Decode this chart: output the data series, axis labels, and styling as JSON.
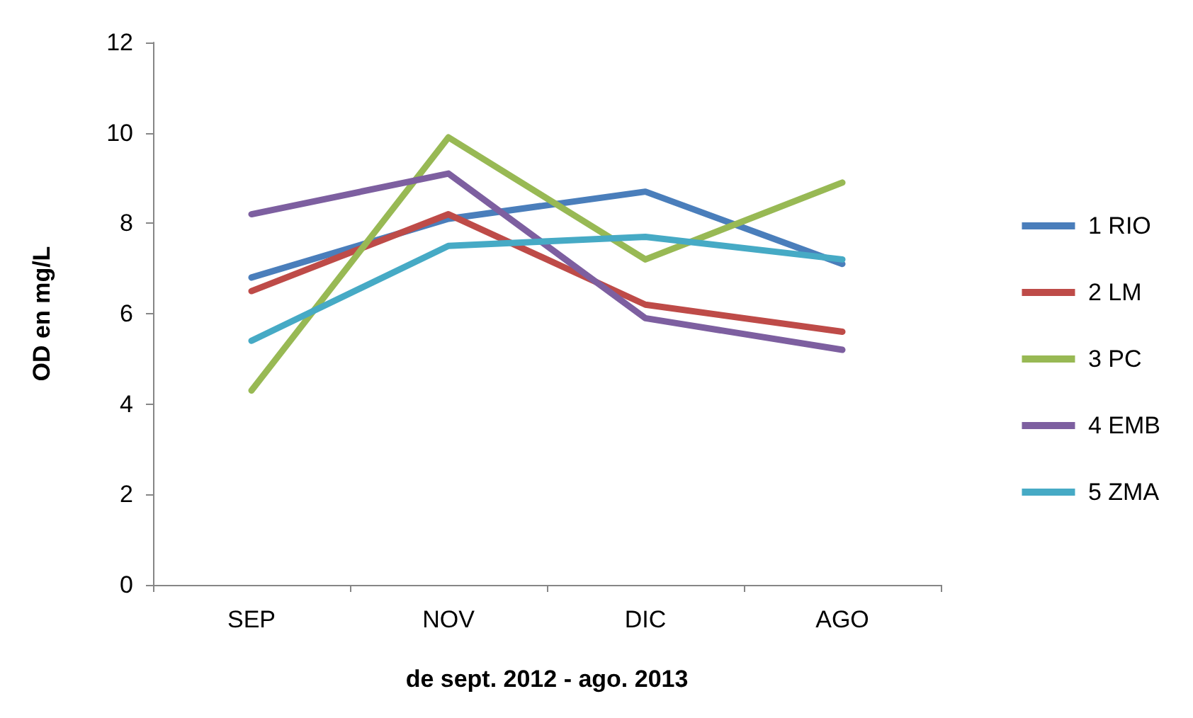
{
  "chart_data": {
    "type": "line",
    "xlabel": "de sept. 2012 - ago. 2013",
    "ylabel": "OD en mg/L",
    "categories": [
      "SEP",
      "NOV",
      "DIC",
      "AGO"
    ],
    "series": [
      {
        "name": "1 RIO",
        "color": "#4a7ebb",
        "values": [
          6.8,
          8.1,
          8.7,
          7.1
        ]
      },
      {
        "name": "2 LM",
        "color": "#be4b48",
        "values": [
          6.5,
          8.2,
          6.2,
          5.6
        ]
      },
      {
        "name": "3 PC",
        "color": "#98b954",
        "values": [
          4.3,
          9.9,
          7.2,
          8.9
        ]
      },
      {
        "name": "4 EMB",
        "color": "#7d5fa0",
        "values": [
          8.2,
          9.1,
          5.9,
          5.2
        ]
      },
      {
        "name": "5 ZMA",
        "color": "#46aac5",
        "values": [
          5.4,
          7.5,
          7.7,
          7.2
        ]
      }
    ],
    "ylim": [
      0,
      12
    ],
    "yticks": [
      0,
      2,
      4,
      6,
      8,
      10,
      12
    ],
    "grid": false,
    "legend": "right",
    "marker": "none",
    "line_style": "solid"
  }
}
